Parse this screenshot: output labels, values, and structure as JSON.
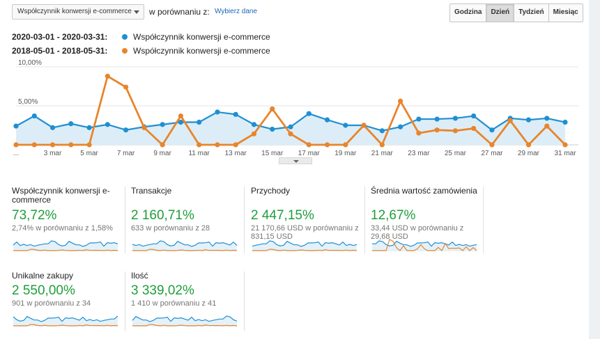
{
  "toolbar": {
    "metric_select": "Współczynnik konwersji e-commerce",
    "compare_label": "w porównaniu z:",
    "compare_link": "Wybierz dane",
    "period_buttons": [
      "Godzina",
      "Dzień",
      "Tydzień",
      "Miesiąc"
    ],
    "active_period": "Dzień"
  },
  "legend": [
    {
      "range": "2020-03-01 - 2020-03-31:",
      "name": "Współczynnik konwersji e-commerce",
      "color": "#1f8fd1"
    },
    {
      "range": "2018-05-01 - 2018-05-31:",
      "name": "Współczynnik konwersji e-commerce",
      "color": "#e8852b"
    }
  ],
  "chart_data": {
    "type": "line",
    "y_ticks": [
      "10,00%",
      "5,00%"
    ],
    "ylim": [
      0,
      10
    ],
    "x_labels": [
      "...",
      "3 mar",
      "5 mar",
      "7 mar",
      "9 mar",
      "11 mar",
      "13 mar",
      "15 mar",
      "17 mar",
      "19 mar",
      "21 mar",
      "23 mar",
      "25 mar",
      "27 mar",
      "29 mar",
      "31 mar"
    ],
    "x": [
      1,
      2,
      3,
      4,
      5,
      6,
      7,
      8,
      9,
      10,
      11,
      12,
      13,
      14,
      15,
      16,
      17,
      18,
      19,
      20,
      21,
      22,
      23,
      24,
      25,
      26,
      27,
      28,
      29,
      30,
      31
    ],
    "series": [
      {
        "name": "2020-03-01 - 2020-03-31",
        "color": "#1f8fd1",
        "values": [
          2.4,
          3.7,
          2.2,
          2.7,
          2.2,
          2.6,
          1.9,
          2.3,
          2.6,
          2.9,
          2.9,
          4.2,
          3.9,
          2.6,
          2.0,
          2.3,
          4.0,
          3.2,
          2.5,
          2.5,
          1.8,
          2.3,
          3.3,
          3.3,
          3.4,
          3.7,
          1.9,
          3.4,
          3.2,
          3.4,
          2.9
        ]
      },
      {
        "name": "2018-05-01 - 2018-05-31",
        "color": "#e8852b",
        "values": [
          0,
          0,
          0,
          0,
          0,
          8.8,
          7.4,
          2.2,
          0,
          3.7,
          0,
          0,
          0,
          1.4,
          4.6,
          1.4,
          0,
          0,
          0,
          2.5,
          0,
          5.6,
          1.5,
          1.9,
          1.8,
          2.1,
          0,
          3.1,
          0,
          2.4,
          0
        ]
      }
    ],
    "fill_color": "#dcedf7"
  },
  "cards": [
    {
      "title": "Współczynnik konwersji e-commerce",
      "value": "73,72%",
      "sub": "2,74% w porównaniu z 1,58%"
    },
    {
      "title": "Transakcje",
      "value": "2 160,71%",
      "sub": "633 w porównaniu z 28"
    },
    {
      "title": "Przychody",
      "value": "2 447,15%",
      "sub": "21 170,66 USD w porównaniu z 831,15 USD"
    },
    {
      "title": "Średnia wartość zamówienia",
      "value": "12,67%",
      "sub": "33,44 USD w porównaniu z 29,68 USD"
    },
    {
      "title": "Unikalne zakupy",
      "value": "2 550,00%",
      "sub": "901 w porównaniu z 34"
    },
    {
      "title": "Ilość",
      "value": "3 339,02%",
      "sub": "1 410 w porównaniu z 41"
    }
  ]
}
